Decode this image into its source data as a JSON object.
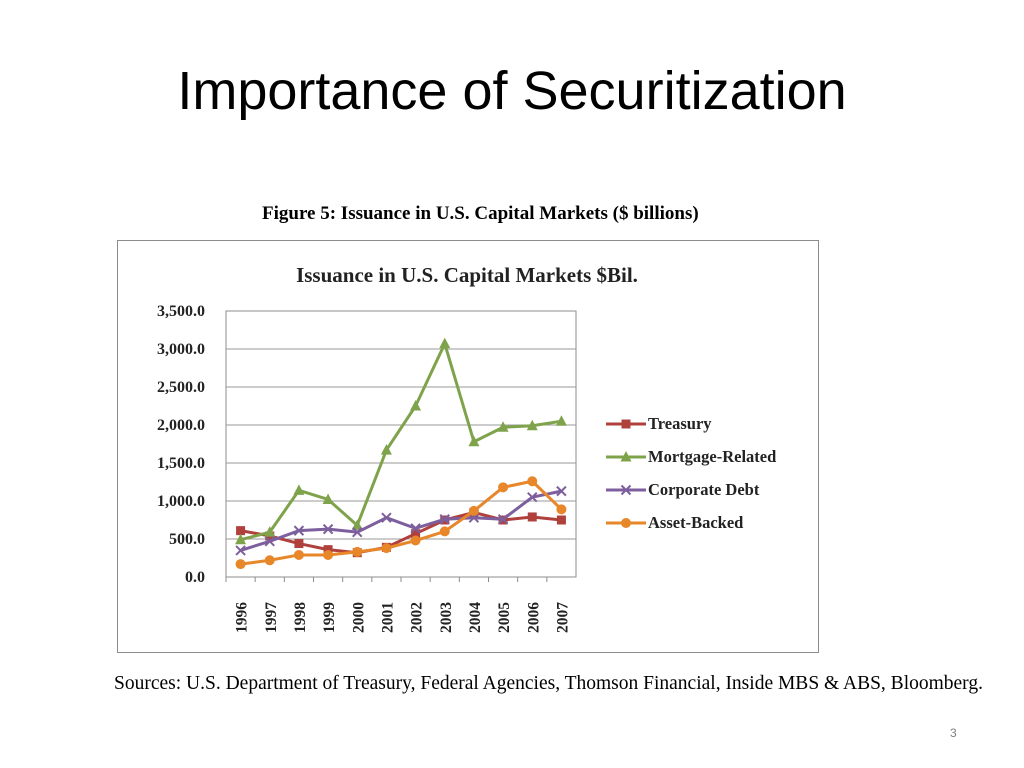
{
  "slide": {
    "title": "Importance of Securitization",
    "figure_caption": "Figure 5: Issuance in U.S. Capital Markets ($ billions)",
    "sources": "Sources: U.S. Department of Treasury, Federal Agencies, Thomson Financial, Inside MBS & ABS, Bloomberg.",
    "page_number": "3"
  },
  "chart_data": {
    "type": "line",
    "title": "Issuance in U.S. Capital Markets $Bil.",
    "xlabel": "",
    "ylabel": "",
    "categories": [
      "1996",
      "1997",
      "1998",
      "1999",
      "2000",
      "2001",
      "2002",
      "2003",
      "2004",
      "2005",
      "2006",
      "2007"
    ],
    "ylim": [
      0,
      3500
    ],
    "yticks": [
      "0.0",
      "500.0",
      "1,000.0",
      "1,500.0",
      "2,000.0",
      "2,500.0",
      "3,000.0",
      "3,500.0"
    ],
    "grid": "horizontal",
    "legend_position": "right",
    "series": [
      {
        "name": "Treasury",
        "color": "#b0403c",
        "marker": "square",
        "values": [
          610,
          540,
          440,
          360,
          320,
          390,
          570,
          750,
          850,
          750,
          790,
          750
        ]
      },
      {
        "name": "Mortgage-Related",
        "color": "#7fa34b",
        "marker": "triangle",
        "values": [
          490,
          590,
          1140,
          1020,
          680,
          1670,
          2250,
          3070,
          1780,
          1970,
          1990,
          2050
        ]
      },
      {
        "name": "Corporate Debt",
        "color": "#7c5f9c",
        "marker": "x",
        "values": [
          350,
          470,
          610,
          630,
          590,
          780,
          640,
          760,
          780,
          760,
          1050,
          1130
        ]
      },
      {
        "name": "Asset-Backed",
        "color": "#e8862a",
        "marker": "circle",
        "values": [
          170,
          220,
          290,
          290,
          330,
          380,
          480,
          600,
          870,
          1180,
          1260,
          890
        ]
      }
    ]
  }
}
